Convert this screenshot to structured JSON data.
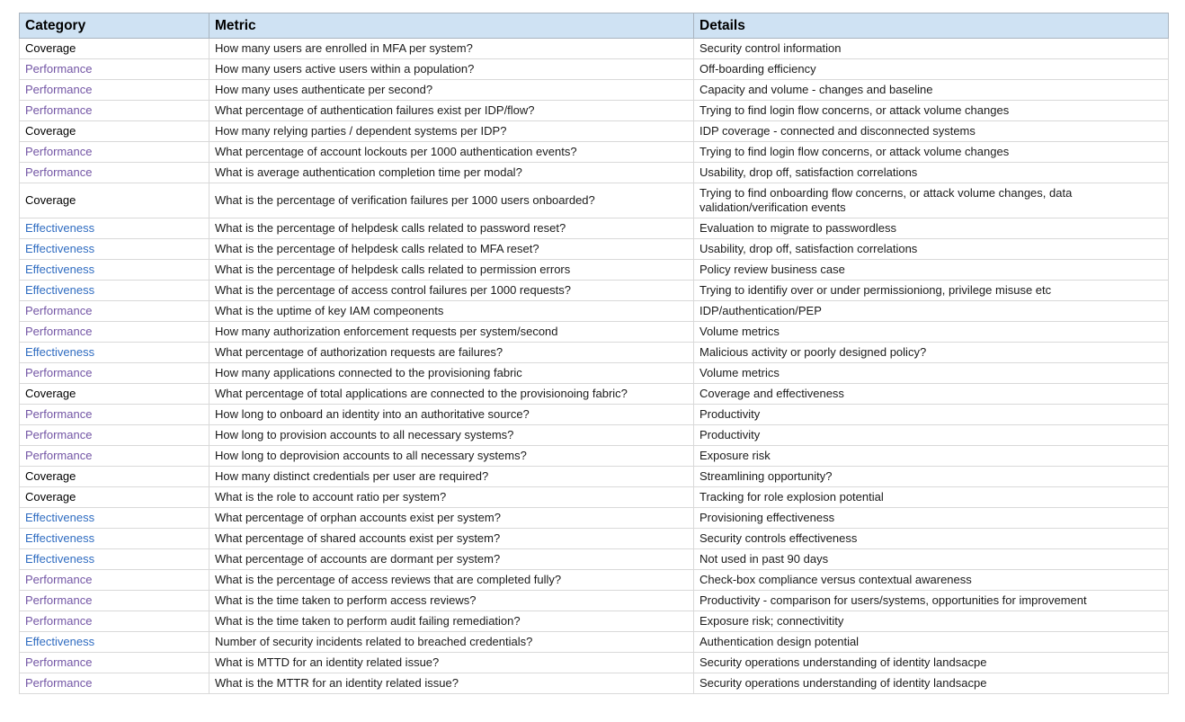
{
  "table": {
    "header_bg": "#cfe2f3",
    "body_border_color": "#d9d9d9",
    "header_border_color": "#a9b4bf",
    "category_colors": {
      "Coverage": "#000000",
      "Performance": "#7355a5",
      "Effectiveness": "#2f6cc1"
    },
    "columns": [
      {
        "label": "Category"
      },
      {
        "label": "Metric"
      },
      {
        "label": "Details"
      }
    ],
    "rows": [
      {
        "category": "Coverage",
        "metric": "How many users are enrolled in MFA per system?",
        "details": "Security control information"
      },
      {
        "category": "Performance",
        "metric": "How many users active users within a population?",
        "details": "Off-boarding efficiency"
      },
      {
        "category": "Performance",
        "metric": "How many uses authenticate per second?",
        "details": "Capacity and volume - changes and baseline"
      },
      {
        "category": "Performance",
        "metric": "What percentage of authentication failures exist per IDP/flow?",
        "details": "Trying to find login flow concerns, or attack volume changes"
      },
      {
        "category": "Coverage",
        "metric": "How many relying parties / dependent systems per IDP?",
        "details": "IDP coverage - connected and disconnected systems"
      },
      {
        "category": "Performance",
        "metric": "What percentage of account lockouts per 1000 authentication events?",
        "details": "Trying to find login flow concerns, or attack volume changes"
      },
      {
        "category": "Performance",
        "metric": "What is average authentication completion time per modal?",
        "details": "Usability, drop off, satisfaction correlations"
      },
      {
        "category": "Coverage",
        "metric": "What is the percentage of verification failures per 1000 users onboarded?",
        "details": "Trying to find onboarding flow concerns, or attack volume changes, data validation/verification events"
      },
      {
        "category": "Effectiveness",
        "metric": "What is the percentage of helpdesk calls related to password reset?",
        "details": "Evaluation to migrate to passwordless"
      },
      {
        "category": "Effectiveness",
        "metric": "What is the percentage of helpdesk calls related to MFA reset?",
        "details": "Usability, drop off, satisfaction correlations"
      },
      {
        "category": "Effectiveness",
        "metric": "What is the percentage of helpdesk calls related to permission errors",
        "details": "Policy review business case"
      },
      {
        "category": "Effectiveness",
        "metric": "What is the percentage of access control failures per 1000 requests?",
        "details": "Trying to identifiy over or under permissioniong, privilege misuse etc"
      },
      {
        "category": "Performance",
        "metric": "What is the uptime of key IAM compeonents",
        "details": "IDP/authentication/PEP"
      },
      {
        "category": "Performance",
        "metric": "How many authorization enforcement requests per system/second",
        "details": "Volume metrics"
      },
      {
        "category": "Effectiveness",
        "metric": "What percentage of authorization requests are failures?",
        "details": "Malicious activity or poorly designed policy?"
      },
      {
        "category": "Performance",
        "metric": "How many applications connected to the provisioning fabric",
        "details": "Volume metrics"
      },
      {
        "category": "Coverage",
        "metric": "What percentage of total applications are connected to the provisionoing fabric?",
        "details": "Coverage and effectiveness"
      },
      {
        "category": "Performance",
        "metric": "How long to onboard an identity into an authoritative source?",
        "details": "Productivity"
      },
      {
        "category": "Performance",
        "metric": "How long to provision accounts to all necessary systems?",
        "details": "Productivity"
      },
      {
        "category": "Performance",
        "metric": "How long to deprovision accounts to all necessary systems?",
        "details": "Exposure risk"
      },
      {
        "category": "Coverage",
        "metric": "How many distinct credentials per user are required?",
        "details": "Streamlining opportunity?"
      },
      {
        "category": "Coverage",
        "metric": "What is the role to account ratio per system?",
        "details": "Tracking for role explosion potential"
      },
      {
        "category": "Effectiveness",
        "metric": "What percentage of orphan accounts exist per system?",
        "details": "Provisioning effectiveness"
      },
      {
        "category": "Effectiveness",
        "metric": "What percentage of shared accounts exist per system?",
        "details": "Security controls effectiveness"
      },
      {
        "category": "Effectiveness",
        "metric": "What percentage of accounts are dormant per system?",
        "details": "Not used in past 90 days"
      },
      {
        "category": "Performance",
        "metric": "What is the percentage of access reviews that are completed fully?",
        "details": "Check-box compliance versus contextual awareness"
      },
      {
        "category": "Performance",
        "metric": "What is the time taken to perform access reviews?",
        "details": "Productivity - comparison for users/systems, opportunities for improvement"
      },
      {
        "category": "Performance",
        "metric": "What is the time taken to perform audit failing remediation?",
        "details": "Exposure risk; connectivitity"
      },
      {
        "category": "Effectiveness",
        "metric": "Number of security incidents related to breached credentials?",
        "details": "Authentication design potential"
      },
      {
        "category": "Performance",
        "metric": "What is MTTD for an identity related issue?",
        "details": "Security operations understanding of identity landsacpe"
      },
      {
        "category": "Performance",
        "metric": "What is the MTTR for an identity related issue?",
        "details": "Security operations understanding of identity landsacpe"
      }
    ]
  }
}
